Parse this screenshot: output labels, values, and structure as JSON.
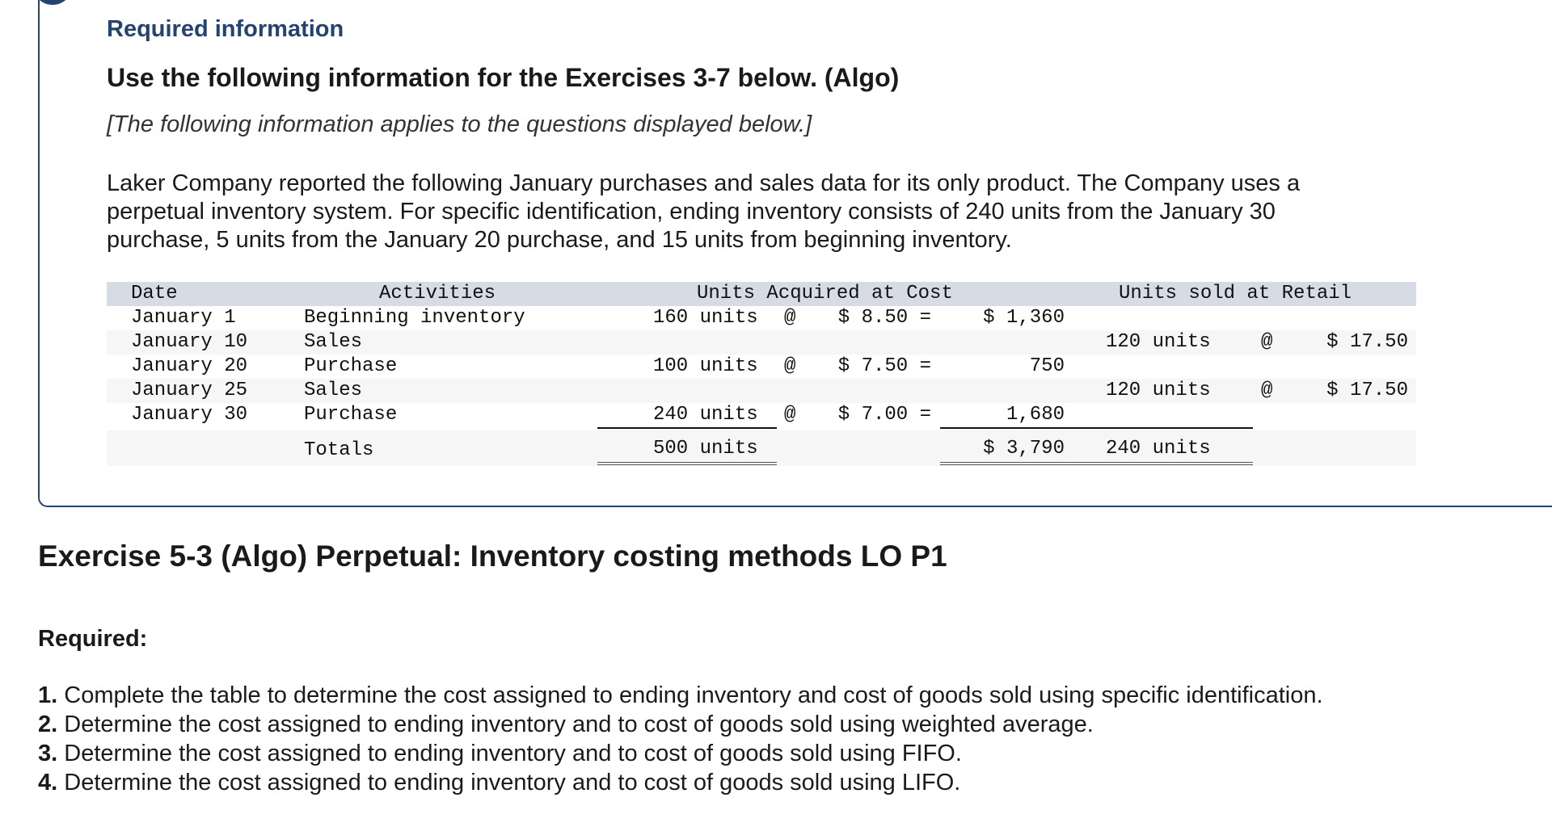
{
  "header": {
    "required_information": "Required information",
    "use_following": "Use the following information for the Exercises 3-7 below. (Algo)",
    "applies": "[The following information applies to the questions displayed below.]"
  },
  "description_lines": [
    "Laker Company reported the following January purchases and sales data for its only product. The Company uses a",
    "perpetual inventory system. For specific identification, ending inventory consists of 240 units from the January 30",
    "purchase, 5 units from the January 20 purchase, and 15 units from beginning inventory."
  ],
  "table": {
    "headers": {
      "date": "Date",
      "activities": "Activities",
      "acquired": "Units Acquired at Cost",
      "sold": "Units sold at Retail"
    },
    "rows": [
      {
        "date": "January 1",
        "activity": "Beginning inventory",
        "acq_units": "160 units",
        "acq_at": "@",
        "acq_cost": "$ 8.50 =",
        "acq_total": "$ 1,360",
        "sold_units": "",
        "sold_at": "",
        "sold_price": ""
      },
      {
        "date": "January 10",
        "activity": "Sales",
        "acq_units": "",
        "acq_at": "",
        "acq_cost": "",
        "acq_total": "",
        "sold_units": "120 units",
        "sold_at": "@",
        "sold_price": "$ 17.50"
      },
      {
        "date": "January 20",
        "activity": "Purchase",
        "acq_units": "100 units",
        "acq_at": "@",
        "acq_cost": "$ 7.50 =",
        "acq_total": "750",
        "sold_units": "",
        "sold_at": "",
        "sold_price": ""
      },
      {
        "date": "January 25",
        "activity": "Sales",
        "acq_units": "",
        "acq_at": "",
        "acq_cost": "",
        "acq_total": "",
        "sold_units": "120 units",
        "sold_at": "@",
        "sold_price": "$ 17.50"
      },
      {
        "date": "January 30",
        "activity": "Purchase",
        "acq_units": "240 units",
        "acq_at": "@",
        "acq_cost": "$ 7.00 =",
        "acq_total": "1,680",
        "sold_units": "",
        "sold_at": "",
        "sold_price": ""
      }
    ],
    "totals": {
      "label": "Totals",
      "acq_units": "500 units",
      "acq_total": "$ 3,790",
      "sold_units": "240 units"
    }
  },
  "exercise_title": "Exercise 5-3 (Algo) Perpetual: Inventory costing methods LO P1",
  "required_label": "Required:",
  "requirements": [
    {
      "num": "1.",
      "text": " Complete the table to determine the cost assigned to ending inventory and cost of goods sold using specific identification."
    },
    {
      "num": "2.",
      "text": " Determine the cost assigned to ending inventory and to cost of goods sold using weighted average."
    },
    {
      "num": "3.",
      "text": " Determine the cost assigned to ending inventory and to cost of goods sold using FIFO."
    },
    {
      "num": "4.",
      "text": " Determine the cost assigned to ending inventory and to cost of goods sold using LIFO."
    }
  ]
}
